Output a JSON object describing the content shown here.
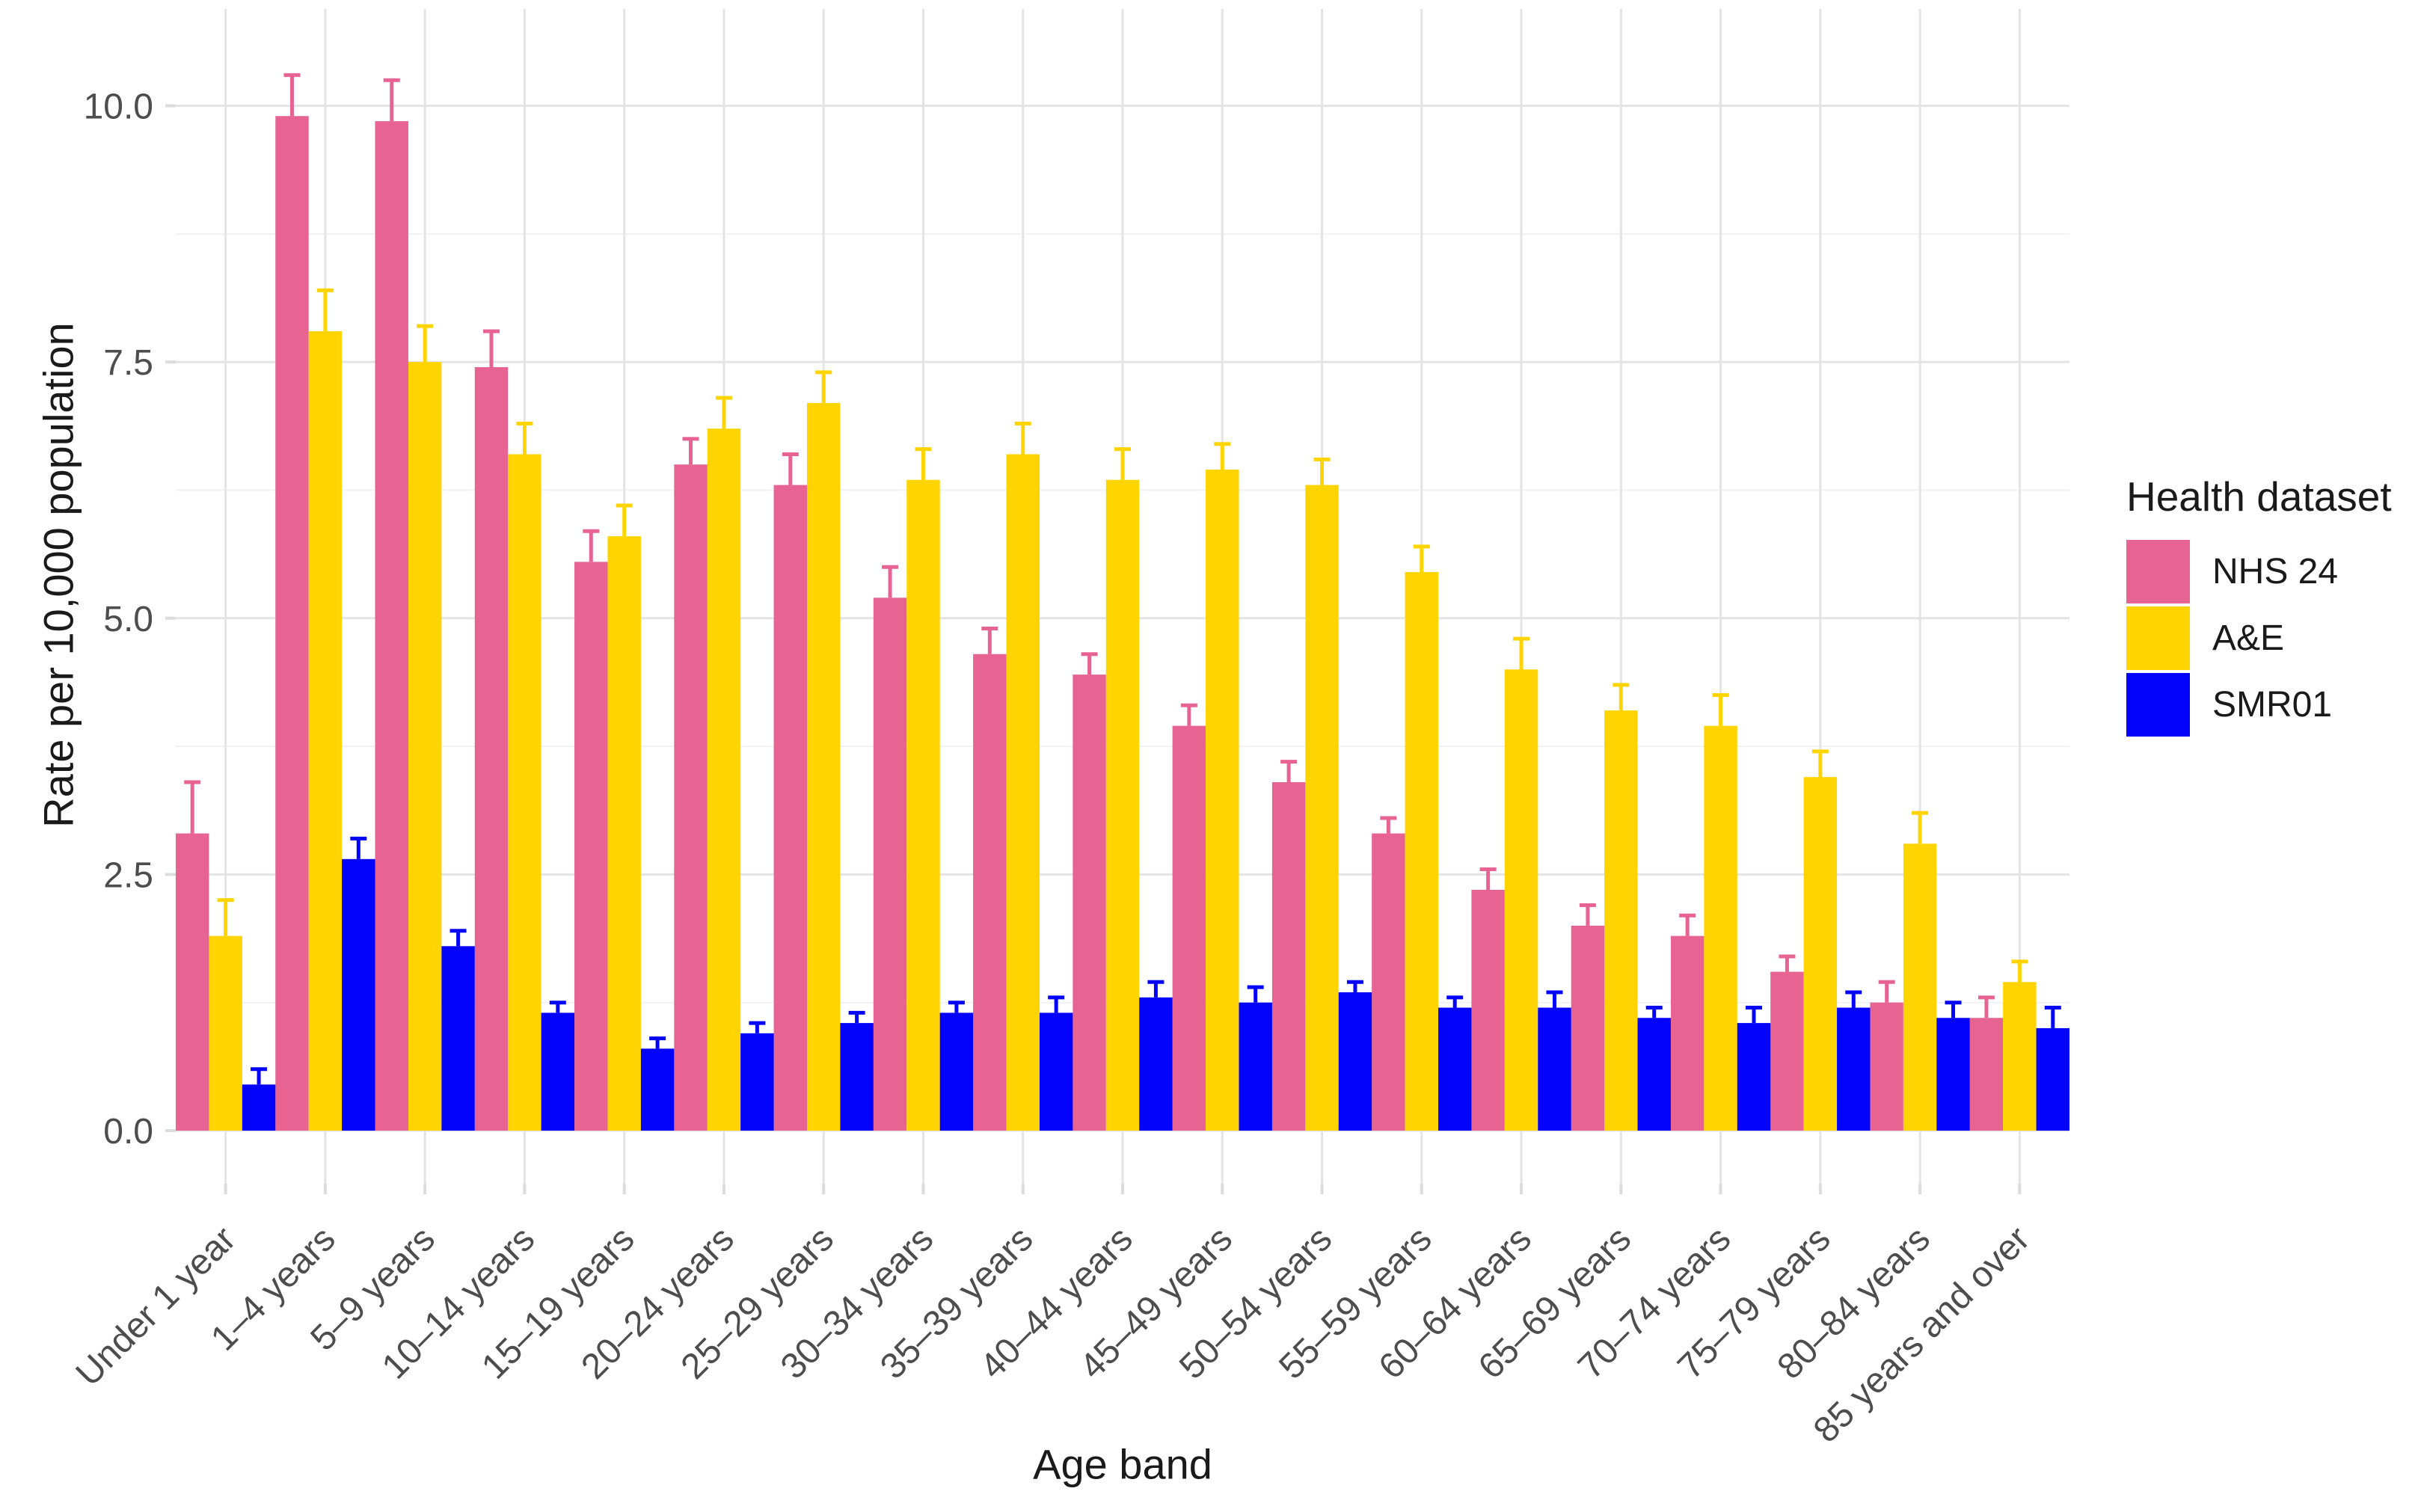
{
  "chart_data": {
    "type": "bar",
    "title": "",
    "xlabel": "Age band",
    "ylabel": "Rate per 10,000 population",
    "legend_title": "Health dataset",
    "legend_position": "right",
    "grid": true,
    "ylim": [
      -0.52,
      10.94
    ],
    "ytick_values": [
      0,
      2.5,
      5,
      7.5,
      10
    ],
    "ytick_labels": [
      "0.0",
      "2.5",
      "5.0",
      "7.5",
      "10.0"
    ],
    "ytick_minor_values": [
      1.25,
      3.75,
      6.25,
      8.75
    ],
    "categories": [
      "Under 1 year",
      "1–4 years",
      "5–9 years",
      "10–14 years",
      "15–19 years",
      "20–24 years",
      "25–29 years",
      "30–34 years",
      "35–39 years",
      "40–44 years",
      "45–49 years",
      "50–54 years",
      "55–59 years",
      "60–64 years",
      "65–69 years",
      "70–74 years",
      "75–79 years",
      "80–84 years",
      "85 years and over"
    ],
    "series": [
      {
        "name": "NHS 24",
        "color": "#E76392",
        "values": [
          2.9,
          9.9,
          9.85,
          7.45,
          5.55,
          6.5,
          6.3,
          5.2,
          4.65,
          4.45,
          3.95,
          3.4,
          2.9,
          2.35,
          2.0,
          1.9,
          1.55,
          1.25,
          1.1
        ],
        "upper": [
          3.4,
          10.3,
          10.25,
          7.8,
          5.85,
          6.75,
          6.6,
          5.5,
          4.9,
          4.65,
          4.15,
          3.6,
          3.05,
          2.55,
          2.2,
          2.1,
          1.7,
          1.45,
          1.3
        ]
      },
      {
        "name": "A&E",
        "color": "#FFD400",
        "values": [
          1.9,
          7.8,
          7.5,
          6.6,
          5.8,
          6.85,
          7.1,
          6.35,
          6.6,
          6.35,
          6.45,
          6.3,
          5.45,
          4.5,
          4.1,
          3.95,
          3.45,
          2.8,
          1.45
        ],
        "upper": [
          2.25,
          8.2,
          7.85,
          6.9,
          6.1,
          7.15,
          7.4,
          6.65,
          6.9,
          6.65,
          6.7,
          6.55,
          5.7,
          4.8,
          4.35,
          4.25,
          3.7,
          3.1,
          1.65
        ]
      },
      {
        "name": "SMR01",
        "color": "#0303FA",
        "values": [
          0.45,
          2.65,
          1.8,
          1.15,
          0.8,
          0.95,
          1.05,
          1.15,
          1.15,
          1.3,
          1.25,
          1.35,
          1.2,
          1.2,
          1.1,
          1.05,
          1.2,
          1.1,
          1.0
        ],
        "upper": [
          0.6,
          2.85,
          1.95,
          1.25,
          0.9,
          1.05,
          1.15,
          1.25,
          1.3,
          1.45,
          1.4,
          1.45,
          1.3,
          1.35,
          1.2,
          1.2,
          1.35,
          1.25,
          1.2
        ]
      }
    ],
    "style": {
      "grid_major_color": "#E4E4E4",
      "grid_minor_color": "#F1F1F1",
      "tick_color": "#DCDCDC",
      "axis_text_color": "#4D4D4D",
      "axis_title_color": "#1A1A1A",
      "panel_background": "#FFFFFF"
    }
  }
}
